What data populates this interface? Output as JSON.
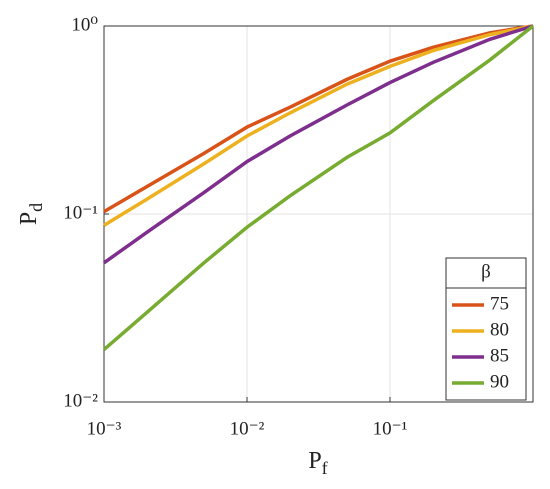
{
  "chart_data": {
    "type": "line",
    "x_label": "P",
    "x_label_sub": "f",
    "y_label": "P",
    "y_label_sub": "d",
    "x": [
      0.001,
      0.002,
      0.005,
      0.01,
      0.02,
      0.05,
      0.1,
      0.2,
      0.5,
      1
    ],
    "series": [
      {
        "name": "75",
        "color": "#d95319",
        "values": [
          0.103,
          0.14,
          0.21,
          0.29,
          0.37,
          0.52,
          0.65,
          0.77,
          0.92,
          1
        ]
      },
      {
        "name": "80",
        "color": "#edb120",
        "values": [
          0.087,
          0.12,
          0.185,
          0.26,
          0.345,
          0.49,
          0.61,
          0.74,
          0.9,
          1
        ]
      },
      {
        "name": "85",
        "color": "#7e2f8e",
        "values": [
          0.055,
          0.08,
          0.13,
          0.19,
          0.26,
          0.38,
          0.5,
          0.64,
          0.85,
          1
        ]
      },
      {
        "name": "90",
        "color": "#77ac30",
        "values": [
          0.019,
          0.03,
          0.055,
          0.085,
          0.125,
          0.2,
          0.27,
          0.4,
          0.66,
          1
        ]
      }
    ],
    "legend_title": "β",
    "legend": "lower right",
    "xlog": true,
    "ylog": true,
    "grid": true,
    "xlim": [
      0.001,
      1
    ],
    "ylim": [
      0.01,
      1
    ],
    "xticks": [
      {
        "value": 0.001,
        "label": "10⁻³"
      },
      {
        "value": 0.01,
        "label": "10⁻²"
      },
      {
        "value": 0.1,
        "label": "10⁻¹"
      }
    ],
    "yticks": [
      {
        "value": 0.01,
        "label": "10⁻²"
      },
      {
        "value": 0.1,
        "label": "10⁻¹"
      },
      {
        "value": 1,
        "label": "10⁰"
      }
    ]
  }
}
